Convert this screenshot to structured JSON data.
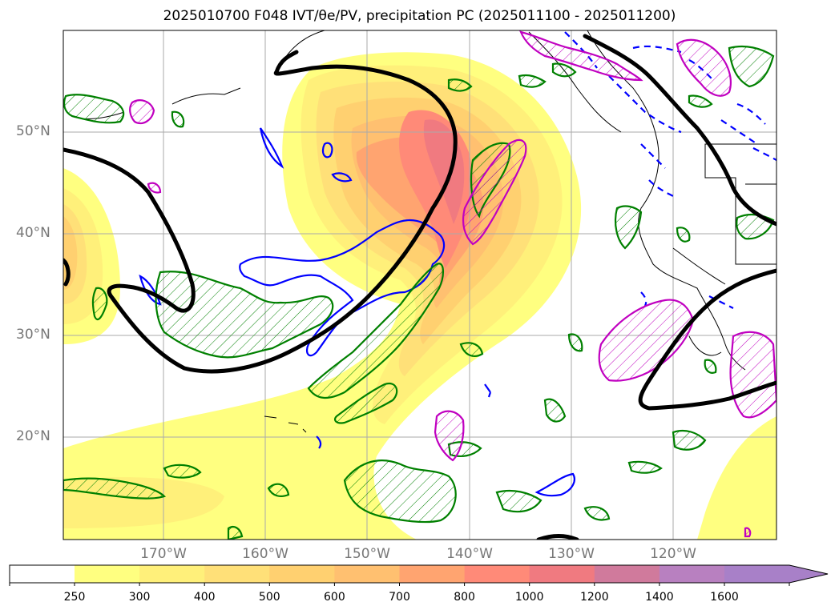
{
  "title": "2025010700 F048 IVT/θe/PV, precipitation PC (2025011100 - 2025011200)",
  "map": {
    "lat_labels": [
      "50°N",
      "40°N",
      "30°N",
      "20°N"
    ],
    "lon_labels": [
      "170°W",
      "160°W",
      "150°W",
      "140°W",
      "130°W",
      "120°W"
    ],
    "colors": {
      "coastline": "#000000",
      "graticule": "#aaaaaa",
      "pv_contour": "#000000",
      "theta_contour": "#0000ff",
      "precip_pc_green": "#008000",
      "precip_pc_magenta": "#c000c0"
    }
  },
  "colorbar": {
    "labels": [
      "250",
      "300",
      "400",
      "500",
      "600",
      "700",
      "800",
      "1000",
      "1200",
      "1400",
      "1600"
    ],
    "colors": [
      "#ffff80",
      "#fff07a",
      "#ffe078",
      "#ffd070",
      "#ffc070",
      "#ffa470",
      "#ff8a78",
      "#f07a80",
      "#d07a9c",
      "#b880c0",
      "#a880c8"
    ],
    "extend": "max"
  }
}
